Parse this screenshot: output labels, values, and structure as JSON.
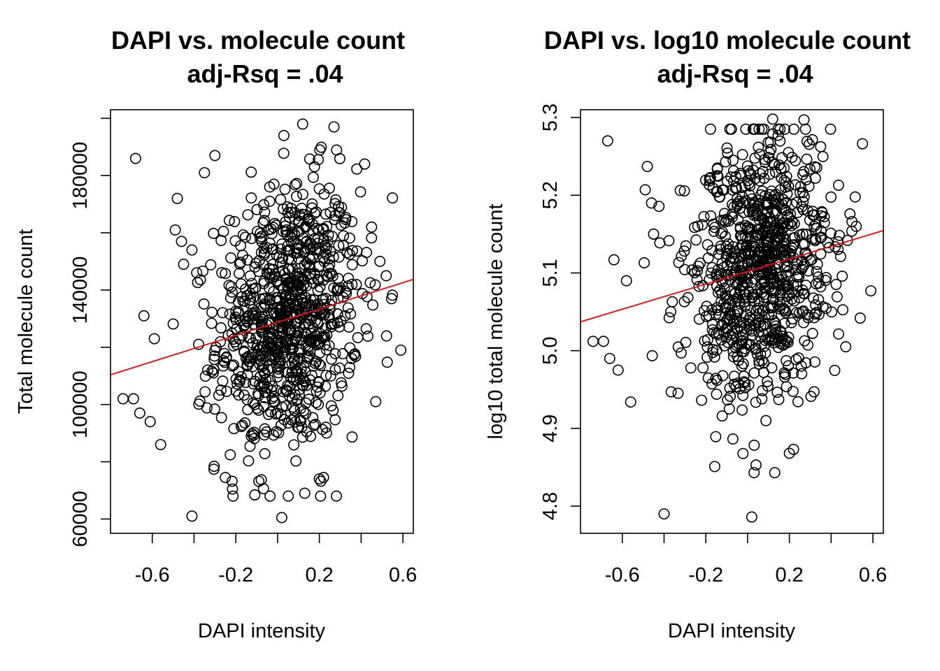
{
  "chart_data": [
    {
      "type": "scatter",
      "title": "DAPI vs. molecule count",
      "subtitle": "adj-Rsq = .04",
      "xlabel": "DAPI intensity",
      "ylabel": "Total molecule count",
      "xlim": [
        -0.8,
        0.65
      ],
      "ylim": [
        55000,
        203000
      ],
      "xticks": [
        -0.6,
        -0.4,
        -0.2,
        0.0,
        0.2,
        0.4,
        0.6
      ],
      "xtick_labels": [
        "-0.6",
        "",
        "-0.2",
        "",
        "0.2",
        "",
        "0.6"
      ],
      "yticks": [
        60000,
        80000,
        100000,
        120000,
        140000,
        160000,
        180000,
        200000
      ],
      "ytick_labels": [
        "60000",
        "",
        "100000",
        "",
        "140000",
        "",
        "180000",
        ""
      ],
      "regression_line": {
        "color": "#ff0000",
        "intercept": 128800,
        "slope": 23000
      },
      "point_count": 900,
      "points_sample": [
        [
          -0.68,
          186000
        ],
        [
          -0.74,
          102000
        ],
        [
          -0.69,
          102000
        ],
        [
          -0.66,
          97000
        ],
        [
          -0.61,
          94000
        ],
        [
          -0.64,
          131000
        ],
        [
          -0.59,
          123000
        ],
        [
          -0.56,
          86000
        ],
        [
          -0.48,
          172000
        ],
        [
          -0.49,
          161000
        ],
        [
          -0.46,
          157000
        ],
        [
          -0.45,
          149000
        ],
        [
          -0.41,
          154000
        ],
        [
          -0.35,
          181000
        ],
        [
          -0.3,
          187000
        ],
        [
          0.03,
          194000
        ],
        [
          0.12,
          198000
        ],
        [
          0.27,
          197000
        ],
        [
          -0.41,
          61000
        ],
        [
          0.02,
          60500
        ],
        [
          0.59,
          119000
        ],
        [
          0.49,
          150000
        ],
        [
          0.45,
          162000
        ],
        [
          0.47,
          101000
        ],
        [
          0.52,
          145000
        ],
        [
          0.13,
          69000
        ],
        [
          0.2,
          74000
        ],
        [
          0.22,
          74500
        ]
      ]
    },
    {
      "type": "scatter",
      "title": "DAPI vs. log10 molecule count",
      "subtitle": "adj-Rsq = .04",
      "xlabel": "DAPI intensity",
      "ylabel": "log10 total molecule count",
      "xlim": [
        -0.8,
        0.65
      ],
      "ylim": [
        4.765,
        5.31
      ],
      "xticks": [
        -0.6,
        -0.4,
        -0.2,
        0.0,
        0.2,
        0.4,
        0.6
      ],
      "xtick_labels": [
        "-0.6",
        "",
        "-0.2",
        "",
        "0.2",
        "",
        "0.6"
      ],
      "yticks": [
        4.8,
        4.9,
        5.0,
        5.1,
        5.2,
        5.3
      ],
      "ytick_labels": [
        "4.8",
        "4.9",
        "5.0",
        "5.1",
        "5.2",
        "5.3"
      ],
      "regression_line": {
        "color": "#ff0000",
        "intercept": 5.102,
        "slope": 0.081
      },
      "point_count": 900,
      "points_sample": [
        [
          -0.67,
          5.27
        ],
        [
          -0.74,
          5.012
        ],
        [
          -0.69,
          5.012
        ],
        [
          -0.66,
          4.99
        ],
        [
          -0.62,
          4.975
        ],
        [
          -0.64,
          5.117
        ],
        [
          -0.58,
          5.09
        ],
        [
          -0.56,
          4.934
        ],
        [
          -0.48,
          5.237
        ],
        [
          -0.49,
          5.207
        ],
        [
          -0.46,
          5.19
        ],
        [
          -0.45,
          5.15
        ],
        [
          -0.4,
          4.79
        ],
        [
          0.02,
          4.786
        ],
        [
          0.12,
          5.298
        ],
        [
          0.27,
          5.297
        ],
        [
          0.59,
          5.077
        ],
        [
          0.49,
          5.176
        ],
        [
          0.47,
          5.005
        ],
        [
          0.52,
          5.16
        ],
        [
          0.13,
          4.843
        ],
        [
          0.2,
          4.868
        ],
        [
          0.22,
          4.873
        ]
      ]
    }
  ]
}
